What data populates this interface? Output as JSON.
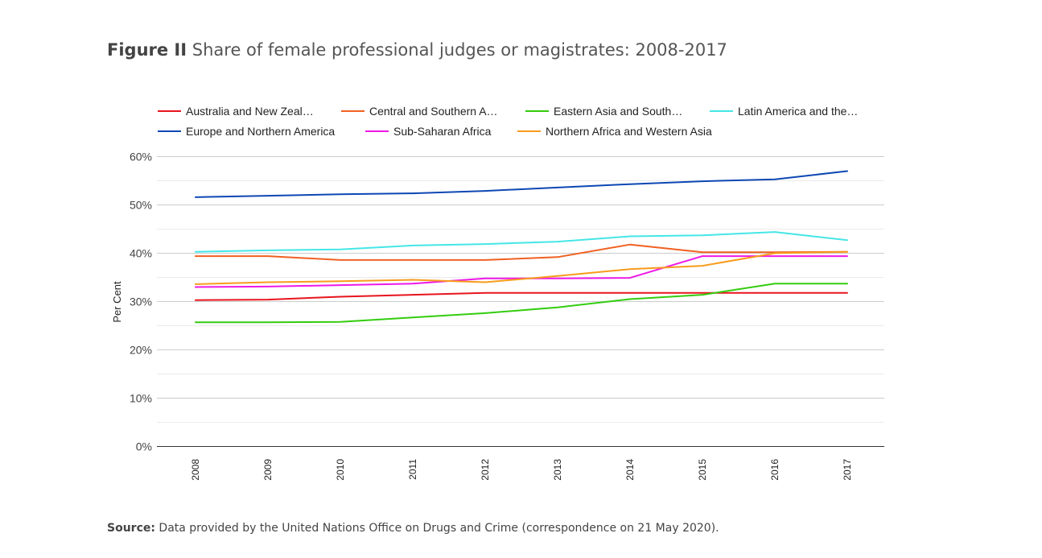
{
  "figure": {
    "label": "Figure II",
    "title": "Share of female professional judges or magistrates: 2008-2017"
  },
  "source": {
    "label": "Source:",
    "text": "Data provided by the United Nations Office on Drugs and Crime (correspondence on 21 May 2020)."
  },
  "chart_data": {
    "type": "line",
    "title": "",
    "xlabel": "",
    "ylabel": "Per Cent",
    "ylim": [
      0,
      60
    ],
    "y_ticks": [
      0,
      10,
      20,
      30,
      40,
      50,
      60
    ],
    "y_tick_labels": [
      "0%",
      "10%",
      "20%",
      "30%",
      "40%",
      "50%",
      "60%"
    ],
    "x": [
      "2008",
      "2009",
      "2010",
      "2011",
      "2012",
      "2013",
      "2014",
      "2015",
      "2016",
      "2017"
    ],
    "grid": true,
    "legend_position": "top",
    "series": [
      {
        "name": "Australia and New Zeal…",
        "color": "#e8141e",
        "values": [
          30.3,
          30.4,
          31.0,
          31.4,
          31.8,
          31.8,
          31.8,
          31.8,
          31.8,
          31.8
        ]
      },
      {
        "name": "Central and Southern A…",
        "color": "#f06021",
        "values": [
          39.4,
          39.4,
          38.6,
          38.6,
          38.6,
          39.2,
          41.8,
          40.2,
          40.2,
          40.3
        ]
      },
      {
        "name": "Eastern Asia and South…",
        "color": "#33cc0e",
        "values": [
          25.7,
          25.7,
          25.8,
          26.7,
          27.6,
          28.8,
          30.5,
          31.4,
          33.7,
          33.7
        ]
      },
      {
        "name": "Latin America and the…",
        "color": "#45e6e6",
        "values": [
          40.3,
          40.6,
          40.8,
          41.6,
          41.9,
          42.4,
          43.5,
          43.7,
          44.4,
          42.7
        ]
      },
      {
        "name": "Europe and Northern America",
        "color": "#0d47b3",
        "values": [
          51.6,
          51.9,
          52.2,
          52.4,
          52.9,
          53.6,
          54.3,
          54.9,
          55.3,
          57.0
        ]
      },
      {
        "name": "Sub-Saharan Africa",
        "color": "#ee18e6",
        "values": [
          33.0,
          33.1,
          33.4,
          33.7,
          34.8,
          34.8,
          34.9,
          39.4,
          39.4,
          39.4
        ]
      },
      {
        "name": "Northern Africa and Western Asia",
        "color": "#f89b1c",
        "values": [
          33.6,
          34.0,
          34.2,
          34.5,
          34.0,
          35.3,
          36.7,
          37.4,
          40.0,
          40.3
        ]
      }
    ]
  }
}
